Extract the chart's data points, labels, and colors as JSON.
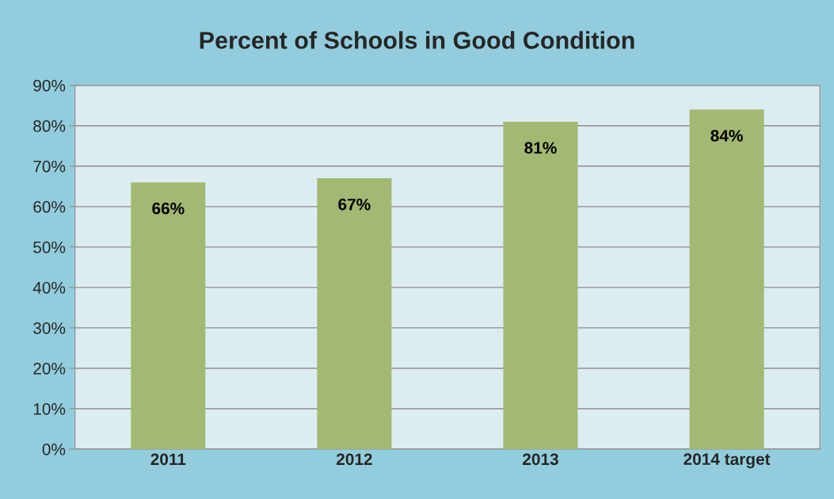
{
  "chart_data": {
    "type": "bar",
    "title": "Percent of Schools in Good Condition",
    "categories": [
      "2011",
      "2012",
      "2013",
      "2014 target"
    ],
    "values": [
      66,
      67,
      81,
      84
    ],
    "value_labels": [
      "66%",
      "67%",
      "81%",
      "84%"
    ],
    "color": "#a3b872",
    "ylim": [
      0,
      90
    ],
    "yticks": [
      {
        "value": 0,
        "label": "0%"
      },
      {
        "value": 10,
        "label": "10%"
      },
      {
        "value": 20,
        "label": "20%"
      },
      {
        "value": 30,
        "label": "30%"
      },
      {
        "value": 40,
        "label": "40%"
      },
      {
        "value": 50,
        "label": "50%"
      },
      {
        "value": 60,
        "label": "60%"
      },
      {
        "value": 70,
        "label": "70%"
      },
      {
        "value": 80,
        "label": "80%"
      },
      {
        "value": 90,
        "label": "90%"
      }
    ],
    "grid": "y"
  }
}
